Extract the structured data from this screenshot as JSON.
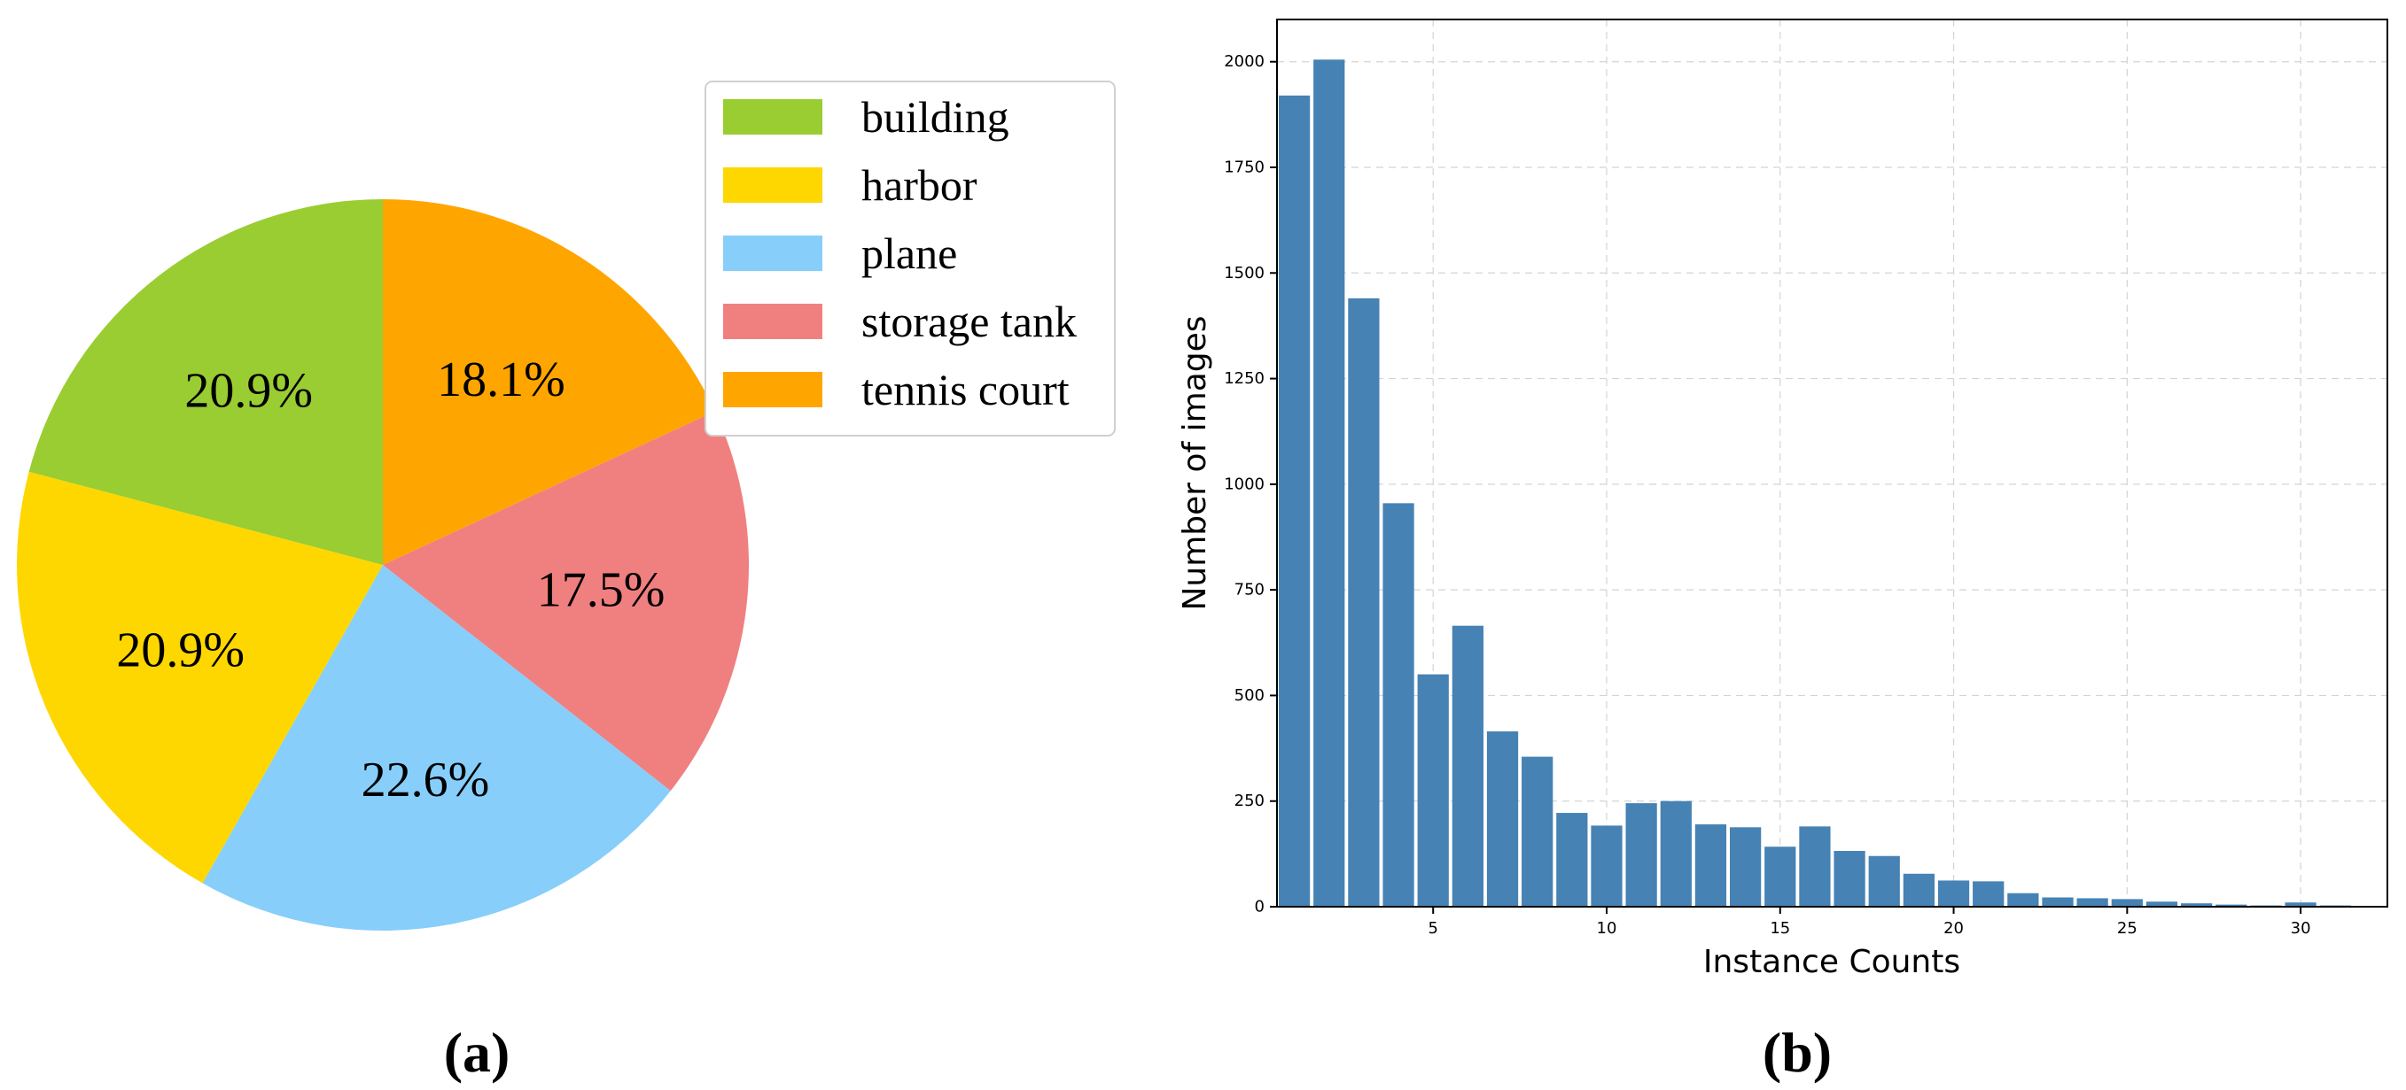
{
  "panels": {
    "a_label": "(a)",
    "b_label": "(b)"
  },
  "chart_data": [
    {
      "type": "pie",
      "start_angle_deg": 90,
      "direction": "clockwise",
      "slices": [
        {
          "name": "tennis court",
          "value": 18.1,
          "label": "18.1%",
          "color": "#FFA500"
        },
        {
          "name": "storage tank",
          "value": 17.5,
          "label": "17.5%",
          "color": "#F08080"
        },
        {
          "name": "plane",
          "value": 22.6,
          "label": "22.6%",
          "color": "#87CEFA"
        },
        {
          "name": "harbor",
          "value": 20.9,
          "label": "20.9%",
          "color": "#FFD700"
        },
        {
          "name": "building",
          "value": 20.9,
          "label": "20.9%",
          "color": "#9ACD32"
        }
      ],
      "legend": {
        "placement": "top-right",
        "entries": [
          {
            "name": "building",
            "color": "#9ACD32"
          },
          {
            "name": "harbor",
            "color": "#FFD700"
          },
          {
            "name": "plane",
            "color": "#87CEFA"
          },
          {
            "name": "storage tank",
            "color": "#F08080"
          },
          {
            "name": "tennis court",
            "color": "#FFA500"
          }
        ]
      }
    },
    {
      "type": "bar",
      "xlabel": "Instance Counts",
      "ylabel": "Number of images",
      "bar_color": "#4682B4",
      "grid": true,
      "xlim": [
        0.5,
        32.5
      ],
      "ylim": [
        0,
        2100
      ],
      "xticks": [
        5,
        10,
        15,
        20,
        25,
        30
      ],
      "yticks": [
        0,
        250,
        500,
        750,
        1000,
        1250,
        1500,
        1750,
        2000
      ],
      "x": [
        1,
        2,
        3,
        4,
        5,
        6,
        7,
        8,
        9,
        10,
        11,
        12,
        13,
        14,
        15,
        16,
        17,
        18,
        19,
        20,
        21,
        22,
        23,
        24,
        25,
        26,
        27,
        28,
        29,
        30,
        31,
        32
      ],
      "values": [
        1920,
        2005,
        1440,
        955,
        550,
        665,
        415,
        355,
        222,
        192,
        245,
        250,
        195,
        188,
        142,
        190,
        132,
        120,
        78,
        62,
        60,
        32,
        22,
        20,
        18,
        12,
        8,
        5,
        3,
        10,
        3,
        0
      ]
    }
  ]
}
